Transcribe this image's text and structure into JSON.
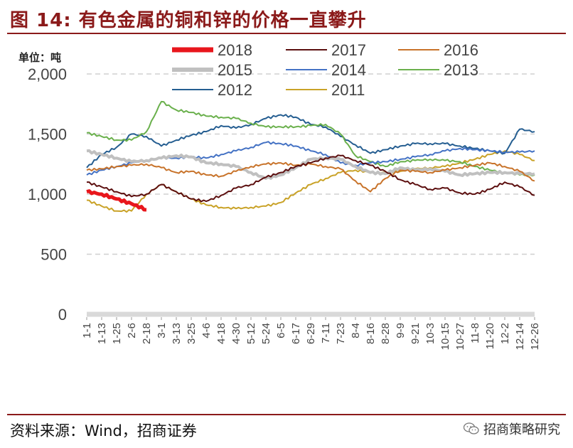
{
  "title": "图 14:  有色金属的铜和锌的价格一直攀升",
  "source": "资料来源：Wind，招商证券",
  "brand": "招商策略研究",
  "chart_data": {
    "type": "line",
    "unit_label": "单位：吨",
    "ylim": [
      0,
      2000
    ],
    "y_ticks": [
      "0",
      "500",
      "1,000",
      "1,500",
      "2,000"
    ],
    "y_tick_values": [
      0,
      500,
      1000,
      1500,
      2000
    ],
    "grid": "dashed horizontal",
    "x_ticks": [
      "1-1",
      "1-13",
      "1-25",
      "2-6",
      "2-18",
      "3-1",
      "3-13",
      "3-25",
      "4-6",
      "4-18",
      "4-30",
      "5-12",
      "5-24",
      "6-5",
      "6-17",
      "6-29",
      "7-11",
      "7-23",
      "8-4",
      "8-16",
      "8-28",
      "9-9",
      "9-21",
      "10-3",
      "10-15",
      "10-27",
      "11-8",
      "11-20",
      "12-2",
      "12-14",
      "12-26"
    ],
    "series": [
      {
        "name": "2018",
        "color": "#E8161C",
        "width": 5,
        "values": [
          1020,
          1000,
          960,
          920,
          870
        ]
      },
      {
        "name": "2017",
        "color": "#5C0F0F",
        "width": 2,
        "values": [
          1100,
          1060,
          1020,
          980,
          1000,
          1080,
          1020,
          960,
          940,
          990,
          1050,
          1080,
          1140,
          1180,
          1230,
          1260,
          1300,
          1320,
          1280,
          1240,
          1190,
          1120,
          1080,
          1040,
          1050,
          1010,
          1000,
          1040,
          1100,
          1060,
          990
        ]
      },
      {
        "name": "2016",
        "color": "#C8732A",
        "width": 2,
        "values": [
          1200,
          1210,
          1230,
          1240,
          1250,
          1220,
          1180,
          1190,
          1160,
          1150,
          1190,
          1230,
          1250,
          1260,
          1240,
          1250,
          1230,
          1210,
          1110,
          1020,
          1130,
          1200,
          1190,
          1180,
          1200,
          1220,
          1240,
          1260,
          1230,
          1190,
          1110
        ]
      },
      {
        "name": "2015",
        "color": "#C0C0C0",
        "width": 4,
        "values": [
          1360,
          1330,
          1300,
          1270,
          1280,
          1300,
          1320,
          1310,
          1260,
          1250,
          1230,
          1180,
          1130,
          1160,
          1220,
          1290,
          1300,
          1290,
          1230,
          1180,
          1170,
          1220,
          1200,
          1210,
          1190,
          1160,
          1170,
          1180,
          1180,
          1170,
          1170
        ]
      },
      {
        "name": "2014",
        "color": "#4472C4",
        "width": 2,
        "values": [
          1160,
          1200,
          1230,
          1260,
          1280,
          1300,
          1300,
          1310,
          1300,
          1330,
          1360,
          1390,
          1430,
          1420,
          1400,
          1360,
          1330,
          1260,
          1240,
          1260,
          1270,
          1290,
          1310,
          1330,
          1360,
          1380,
          1370,
          1360,
          1350,
          1350,
          1360
        ]
      },
      {
        "name": "2013",
        "color": "#6AB04C",
        "width": 2,
        "values": [
          1510,
          1480,
          1450,
          1450,
          1520,
          1770,
          1700,
          1680,
          1650,
          1640,
          1630,
          1590,
          1560,
          1560,
          1560,
          1570,
          1580,
          1500,
          1320,
          1270,
          1230,
          1270,
          1280,
          1290,
          1280,
          1270,
          1230,
          1200,
          1180,
          1160,
          1160
        ]
      },
      {
        "name": "2012",
        "color": "#255E91",
        "width": 2,
        "values": [
          1220,
          1330,
          1390,
          1500,
          1480,
          1400,
          1450,
          1490,
          1520,
          1570,
          1550,
          1580,
          1630,
          1660,
          1640,
          1580,
          1560,
          1480,
          1410,
          1340,
          1370,
          1400,
          1420,
          1420,
          1420,
          1400,
          1380,
          1360,
          1340,
          1540,
          1520
        ]
      },
      {
        "name": "2011",
        "color": "#C9A227",
        "width": 2,
        "values": [
          950,
          900,
          860,
          860,
          1000,
          1080,
          1020,
          960,
          910,
          890,
          880,
          890,
          900,
          930,
          1010,
          1080,
          1130,
          1180,
          1200,
          1180,
          1180,
          1190,
          1210,
          1220,
          1230,
          1260,
          1290,
          1330,
          1360,
          1330,
          1280
        ]
      }
    ]
  }
}
